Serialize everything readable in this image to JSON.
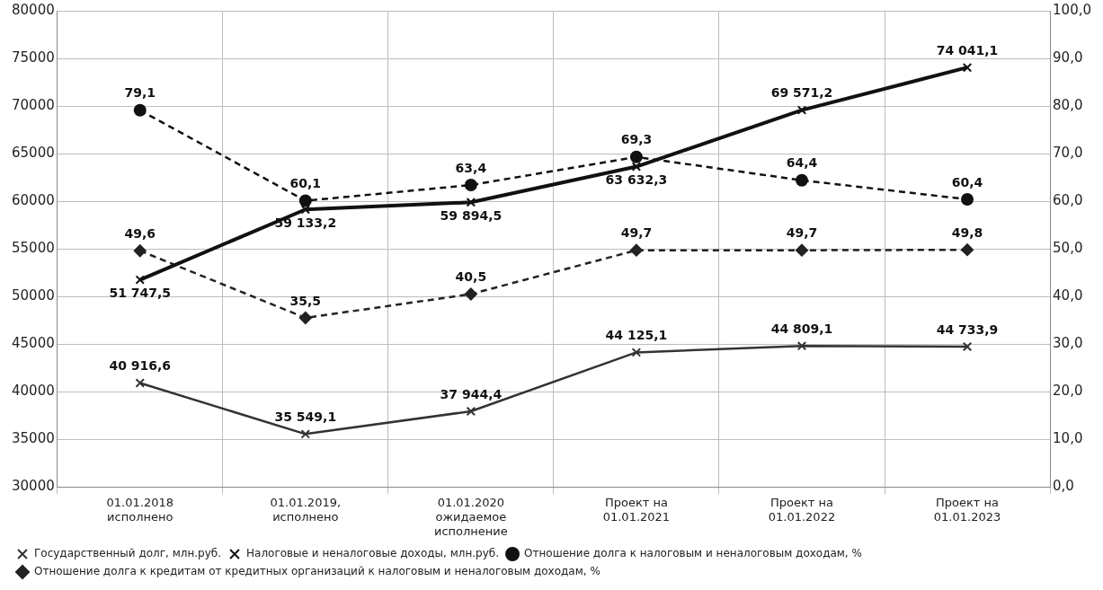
{
  "chart_data": {
    "type": "line",
    "categories": [
      "01.01.2018 исполнено",
      "01.01.2019, исполнено",
      "01.01.2020 ожидаемое исполнение",
      "Проект на 01.01.2021",
      "Проект на 01.01.2022",
      "Проект на 01.01.2023"
    ],
    "series": [
      {
        "name": "Государственный долг, млн.руб.",
        "color": "#333333",
        "marker": "cross",
        "line_style": "solid",
        "values": [
          40916.6,
          35549.1,
          37944.4,
          44125.1,
          44809.1,
          44733.9
        ],
        "value_labels": [
          "40 916,6",
          "35 549,1",
          "37 944,4",
          "44 125,1",
          "44 809,1",
          "44 733,9"
        ]
      },
      {
        "name": "Налоговые и неналоговые доходы, млн.руб.",
        "color": "#111111",
        "marker": "cross",
        "line_style": "solid",
        "values": [
          51747.5,
          59133.2,
          59894.5,
          63632.3,
          69571.2,
          74041.1
        ],
        "value_labels": [
          "51 747,5",
          "59 133,2",
          "59 894,5",
          "63 632,3",
          "69 571,2",
          "74 041,1"
        ]
      },
      {
        "name": "Отношение долга к налоговым и неналоговым доходам, %",
        "color": "#111111",
        "marker": "circle",
        "line_style": "dashed",
        "axis": "y2",
        "values": [
          79.1,
          60.1,
          63.4,
          69.3,
          64.4,
          60.4
        ],
        "value_labels": [
          "79,1",
          "60,1",
          "63,4",
          "69,3",
          "64,4",
          "60,4"
        ]
      },
      {
        "name": "Отношение долга к кредитам от кредитных организаций к налоговым и неналоговым доходам, %",
        "color": "#222222",
        "marker": "diamond",
        "line_style": "dashed",
        "axis": "y2",
        "values": [
          49.6,
          35.5,
          40.5,
          49.7,
          49.7,
          49.8
        ],
        "value_labels": [
          "49,6",
          "35,5",
          "40,5",
          "49,7",
          "49,7",
          "49,8"
        ]
      }
    ],
    "ylim": [
      30000,
      80000
    ],
    "yticks": [
      30000,
      35000,
      40000,
      45000,
      50000,
      55000,
      60000,
      65000,
      70000,
      75000,
      80000
    ],
    "y2lim": [
      0,
      100
    ],
    "y2ticks": [
      {
        "value": 0,
        "label": "0,0"
      },
      {
        "value": 10,
        "label": "10,0"
      },
      {
        "value": 20,
        "label": "20,0"
      },
      {
        "value": 30,
        "label": "30,0"
      },
      {
        "value": 40,
        "label": "40,0"
      },
      {
        "value": 50,
        "label": "50,0"
      },
      {
        "value": 60,
        "label": "60,0"
      },
      {
        "value": 70,
        "label": "70,0"
      },
      {
        "value": 80,
        "label": "80,0"
      },
      {
        "value": 90,
        "label": "90,0"
      },
      {
        "value": 100,
        "label": "100,0"
      }
    ],
    "grid": true,
    "legend": "bottom"
  }
}
